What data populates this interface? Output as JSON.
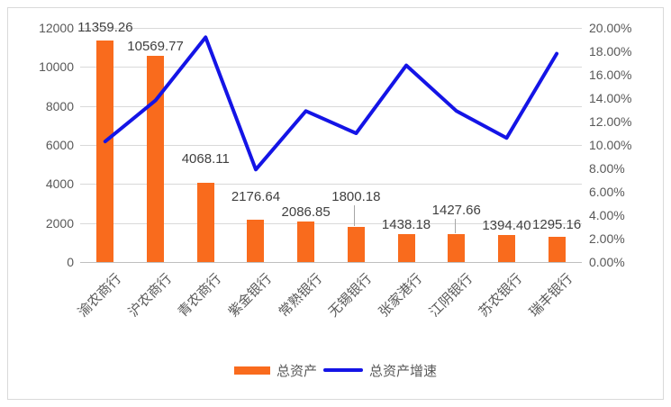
{
  "chart_data": {
    "type": "bar",
    "subtype": "bar-line-combo",
    "title": "",
    "categories": [
      "渝农商行",
      "沪农商行",
      "青农商行",
      "紫金银行",
      "常熟银行",
      "无锡银行",
      "张家港行",
      "江阴银行",
      "苏农银行",
      "瑞丰银行"
    ],
    "series": [
      {
        "name": "总资产",
        "type": "bar",
        "axis": "left",
        "values": [
          11359.26,
          10569.77,
          4068.11,
          2176.64,
          2086.85,
          1800.18,
          1438.18,
          1427.66,
          1394.4,
          1295.16
        ],
        "data_labels": [
          "11359.26",
          "10569.77",
          "4068.11",
          "2176.64",
          "2086.85",
          "1800.18",
          "1438.18",
          "1427.66",
          "1394.40",
          "1295.16"
        ]
      },
      {
        "name": "总资产增速",
        "type": "line",
        "axis": "right",
        "values_percent": [
          10.3,
          13.8,
          19.2,
          7.9,
          12.9,
          11.0,
          16.8,
          12.9,
          10.6,
          17.8
        ]
      }
    ],
    "left_axis": {
      "min": 0,
      "max": 12000,
      "step": 2000,
      "tick_labels": [
        "12000",
        "10000",
        "8000",
        "6000",
        "4000",
        "2000",
        "0"
      ]
    },
    "right_axis": {
      "min": 0,
      "max": 20,
      "step": 2,
      "tick_labels": [
        "20.00%",
        "18.00%",
        "16.00%",
        "14.00%",
        "12.00%",
        "10.00%",
        "8.00%",
        "6.00%",
        "4.00%",
        "2.00%",
        "0.00%"
      ]
    },
    "legend": {
      "position": "bottom",
      "items": [
        "总资产",
        "总资产增速"
      ]
    },
    "grid": true,
    "colors": {
      "bar": "#f96b1d",
      "line": "#1414e6",
      "gridline": "#d9d9d9",
      "axis_text": "#595959",
      "label_text": "#404040",
      "frame": "#d9d9d9"
    }
  }
}
